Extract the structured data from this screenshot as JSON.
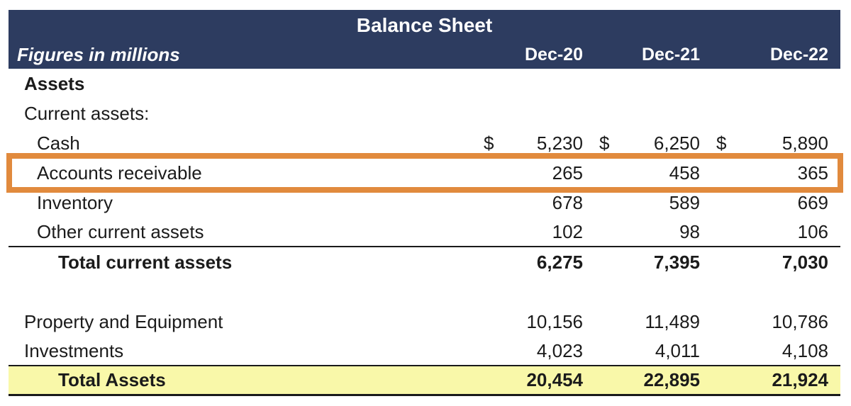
{
  "table": {
    "title": "Balance Sheet",
    "subtitle": "Figures in millions",
    "columns": [
      "Dec-20",
      "Dec-21",
      "Dec-22"
    ],
    "colors": {
      "header_bg": "#2D3C60",
      "header_text": "#FFFFFF",
      "highlight_border": "#E18A3D",
      "total_row_bg": "#F9F8A9"
    },
    "rows": [
      {
        "label": "Assets",
        "values": [
          "",
          "",
          ""
        ]
      },
      {
        "label": "Current assets:",
        "values": [
          "",
          "",
          ""
        ]
      },
      {
        "label": "Cash",
        "currency": "$",
        "values": [
          "5,230",
          "6,250",
          "5,890"
        ]
      },
      {
        "label": "Accounts receivable",
        "values": [
          "265",
          "458",
          "365"
        ]
      },
      {
        "label": "Inventory",
        "values": [
          "678",
          "589",
          "669"
        ]
      },
      {
        "label": "Other current assets",
        "values": [
          "102",
          "98",
          "106"
        ]
      },
      {
        "label": "Total current assets",
        "values": [
          "6,275",
          "7,395",
          "7,030"
        ]
      },
      {
        "label": "",
        "values": [
          "",
          "",
          ""
        ]
      },
      {
        "label": "Property and Equipment",
        "values": [
          "10,156",
          "11,489",
          "10,786"
        ]
      },
      {
        "label": "Investments",
        "values": [
          "4,023",
          "4,011",
          "4,108"
        ]
      },
      {
        "label": "Total Assets",
        "values": [
          "20,454",
          "22,895",
          "21,924"
        ]
      }
    ]
  }
}
